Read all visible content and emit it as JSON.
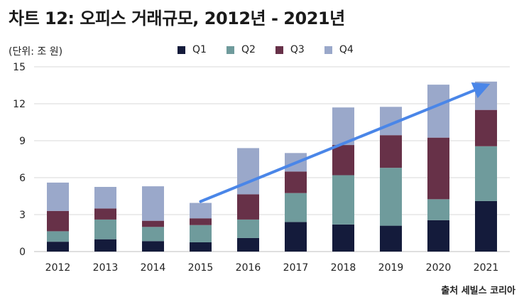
{
  "title": "차트 12: 오피스 거래규모, 2012년 - 2021년",
  "unit_label": "(단위: 조 원)",
  "source": "출처 세빌스 코리아",
  "colors": {
    "Q1": "#141b3b",
    "Q2": "#6f9b9c",
    "Q3": "#673148",
    "Q4": "#9aa8ca",
    "arrow": "#4a86e8"
  },
  "chart_data": {
    "type": "bar",
    "stacked": true,
    "categories": [
      "2012",
      "2013",
      "2014",
      "2015",
      "2016",
      "2017",
      "2018",
      "2019",
      "2020",
      "2021"
    ],
    "series": [
      {
        "name": "Q1",
        "values": [
          0.8,
          1.0,
          0.85,
          0.75,
          1.1,
          2.4,
          2.2,
          2.1,
          2.55,
          4.1
        ]
      },
      {
        "name": "Q2",
        "values": [
          0.85,
          1.6,
          1.15,
          1.4,
          1.5,
          2.35,
          4.0,
          4.7,
          1.7,
          4.45
        ]
      },
      {
        "name": "Q3",
        "values": [
          1.65,
          0.9,
          0.5,
          0.55,
          2.05,
          1.75,
          2.45,
          2.65,
          5.0,
          2.95
        ]
      },
      {
        "name": "Q4",
        "values": [
          2.3,
          1.75,
          2.8,
          1.25,
          3.75,
          1.5,
          3.05,
          2.3,
          4.3,
          2.3
        ]
      }
    ],
    "ylim": [
      0,
      15
    ],
    "yticks": [
      0,
      3,
      6,
      9,
      12,
      15
    ],
    "grid": true,
    "legend_position": "top",
    "annotations": [
      {
        "type": "trend-arrow",
        "from": "2015",
        "to": "2021"
      }
    ]
  }
}
